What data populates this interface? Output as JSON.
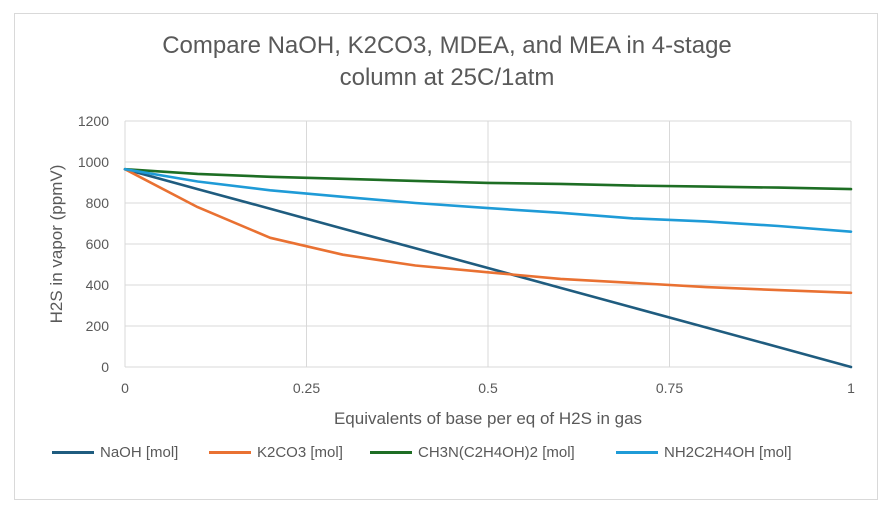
{
  "chart_data": {
    "type": "line",
    "title_lines": [
      "Compare NaOH, K2CO3, MDEA, and MEA in 4-stage",
      "column at 25C/1atm"
    ],
    "xlabel": "Equivalents of base per eq of H2S in gas",
    "ylabel": "H2S in vapor (ppmV)",
    "xlim": [
      0,
      1
    ],
    "ylim": [
      0,
      1200
    ],
    "xticks": [
      0,
      0.25,
      0.5,
      0.75,
      1
    ],
    "xtick_labels": [
      "0",
      "0.25",
      "0.5",
      "0.75",
      "1"
    ],
    "yticks": [
      0,
      200,
      400,
      600,
      800,
      1000,
      1200
    ],
    "ytick_labels": [
      "0",
      "200",
      "400",
      "600",
      "800",
      "1000",
      "1200"
    ],
    "grid": true,
    "legend_position": "bottom",
    "x": [
      0,
      0.1,
      0.2,
      0.3,
      0.4,
      0.5,
      0.6,
      0.7,
      0.8,
      0.9,
      1.0
    ],
    "series": [
      {
        "name": "NaOH [mol]",
        "color": "#1f5c7f",
        "values": [
          965,
          868,
          772,
          675,
          579,
          483,
          386,
          290,
          193,
          97,
          0
        ]
      },
      {
        "name": "K2CO3 [mol]",
        "color": "#e97132",
        "values": [
          965,
          780,
          630,
          548,
          495,
          462,
          430,
          410,
          390,
          375,
          362
        ]
      },
      {
        "name": "CH3N(C2H4OH)2 [mol]",
        "color": "#1e6e24",
        "values": [
          965,
          942,
          928,
          918,
          908,
          898,
          893,
          885,
          880,
          875,
          868
        ]
      },
      {
        "name": "NH2C2H4OH [mol]",
        "color": "#1f9bd7",
        "values": [
          965,
          905,
          862,
          830,
          800,
          775,
          752,
          725,
          710,
          688,
          660
        ]
      }
    ]
  }
}
